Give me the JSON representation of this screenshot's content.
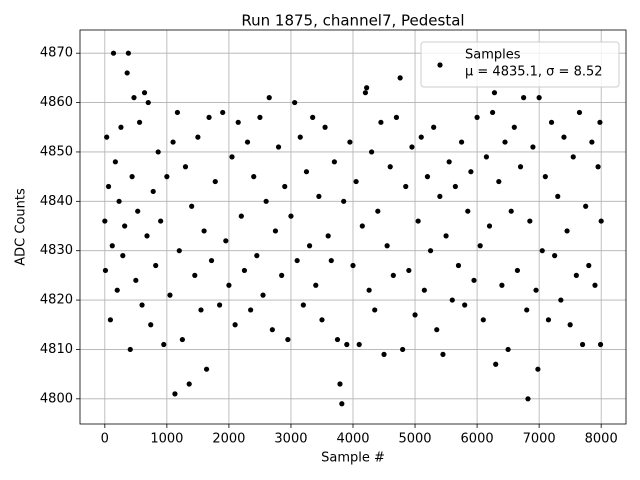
{
  "chart_data": {
    "type": "scatter",
    "title": "Run 1875, channel7, Pedestal",
    "x_label": "Sample #",
    "y_label": "ADC Counts",
    "xlim": [
      -400,
      8400
    ],
    "ylim": [
      4794.9,
      4874.7
    ],
    "xticks": [
      0,
      1000,
      2000,
      3000,
      4000,
      5000,
      6000,
      7000,
      8000
    ],
    "yticks": [
      4800,
      4810,
      4820,
      4830,
      4840,
      4850,
      4860,
      4870
    ],
    "grid": true,
    "legend_position": "upper right",
    "legend_note": "μ = 4835.1, σ = 8.52",
    "series": [
      {
        "name": "Samples",
        "color": "#000000",
        "x": [
          0,
          10,
          30,
          60,
          90,
          120,
          140,
          170,
          200,
          230,
          260,
          290,
          320,
          360,
          380,
          410,
          440,
          470,
          500,
          530,
          560,
          600,
          640,
          680,
          700,
          740,
          780,
          820,
          860,
          900,
          950,
          1000,
          1050,
          1100,
          1130,
          1170,
          1200,
          1250,
          1300,
          1360,
          1400,
          1450,
          1500,
          1550,
          1600,
          1640,
          1680,
          1720,
          1780,
          1850,
          1900,
          1950,
          2000,
          2050,
          2100,
          2150,
          2200,
          2250,
          2300,
          2350,
          2400,
          2450,
          2500,
          2550,
          2600,
          2650,
          2700,
          2750,
          2800,
          2850,
          2900,
          2950,
          3000,
          3060,
          3100,
          3150,
          3200,
          3250,
          3300,
          3350,
          3400,
          3450,
          3500,
          3550,
          3600,
          3650,
          3700,
          3750,
          3790,
          3820,
          3850,
          3900,
          3950,
          4000,
          4050,
          4100,
          4150,
          4200,
          4220,
          4260,
          4300,
          4350,
          4400,
          4450,
          4500,
          4550,
          4600,
          4650,
          4700,
          4760,
          4800,
          4850,
          4900,
          4950,
          5000,
          5050,
          5100,
          5150,
          5200,
          5250,
          5300,
          5350,
          5400,
          5450,
          5500,
          5550,
          5600,
          5650,
          5700,
          5750,
          5800,
          5850,
          5900,
          5950,
          6000,
          6050,
          6100,
          6150,
          6200,
          6250,
          6280,
          6300,
          6350,
          6400,
          6450,
          6500,
          6550,
          6600,
          6650,
          6700,
          6750,
          6800,
          6820,
          6850,
          6900,
          6950,
          6980,
          7000,
          7050,
          7100,
          7150,
          7200,
          7250,
          7300,
          7350,
          7400,
          7450,
          7500,
          7550,
          7600,
          7650,
          7700,
          7750,
          7800,
          7850,
          7900,
          7950,
          7980,
          7990,
          8000
        ],
        "values": [
          4836,
          4826,
          4853,
          4843,
          4816,
          4831,
          4870,
          4848,
          4822,
          4840,
          4855,
          4829,
          4835,
          4866,
          4870,
          4810,
          4845,
          4861,
          4824,
          4838,
          4856,
          4819,
          4862,
          4833,
          4860,
          4815,
          4842,
          4827,
          4850,
          4836,
          4811,
          4845,
          4821,
          4852,
          4801,
          4858,
          4830,
          4812,
          4847,
          4803,
          4839,
          4825,
          4853,
          4818,
          4834,
          4806,
          4857,
          4828,
          4844,
          4819,
          4858,
          4832,
          4823,
          4849,
          4815,
          4856,
          4837,
          4826,
          4852,
          4818,
          4845,
          4829,
          4857,
          4821,
          4840,
          4861,
          4814,
          4834,
          4851,
          4825,
          4843,
          4812,
          4837,
          4860,
          4828,
          4853,
          4819,
          4846,
          4831,
          4857,
          4823,
          4841,
          4816,
          4855,
          4833,
          4828,
          4848,
          4812,
          4803,
          4799,
          4840,
          4811,
          4852,
          4827,
          4844,
          4811,
          4835,
          4862,
          4863,
          4822,
          4850,
          4818,
          4838,
          4856,
          4809,
          4831,
          4847,
          4825,
          4857,
          4865,
          4810,
          4843,
          4826,
          4851,
          4817,
          4836,
          4853,
          4822,
          4845,
          4830,
          4855,
          4814,
          4841,
          4809,
          4833,
          4848,
          4820,
          4843,
          4827,
          4852,
          4819,
          4838,
          4846,
          4824,
          4857,
          4831,
          4816,
          4849,
          4835,
          4858,
          4862,
          4807,
          4844,
          4823,
          4852,
          4810,
          4838,
          4855,
          4826,
          4847,
          4861,
          4818,
          4800,
          4836,
          4851,
          4822,
          4806,
          4861,
          4830,
          4845,
          4816,
          4856,
          4829,
          4841,
          4820,
          4853,
          4834,
          4815,
          4849,
          4825,
          4858,
          4811,
          4839,
          4827,
          4852,
          4823,
          4847,
          4856,
          4811,
          4836
        ]
      }
    ]
  }
}
